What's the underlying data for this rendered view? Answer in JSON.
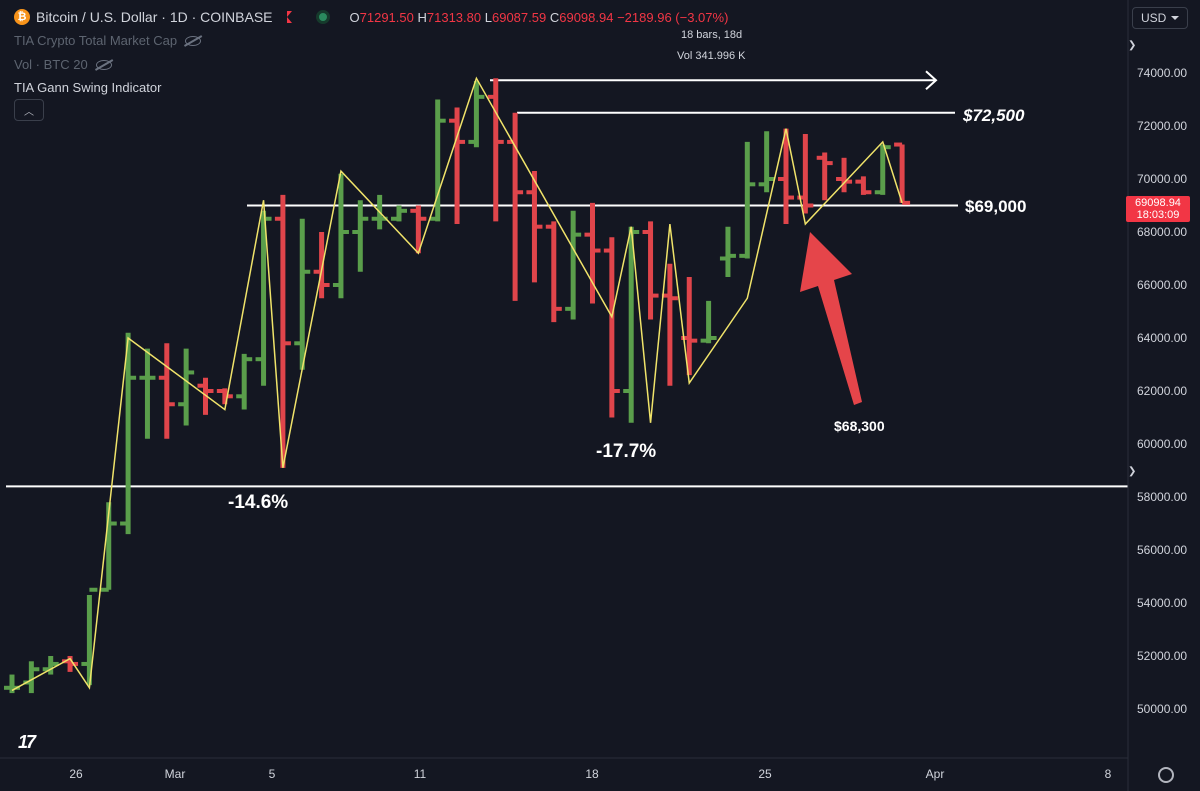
{
  "header": {
    "coin_glyph": "₿",
    "symbol_title": "Bitcoin / U.S. Dollar · 1D · COINBASE",
    "ohlc": {
      "o_label": "O",
      "o": "71291.50",
      "h_label": "H",
      "h": "71313.80",
      "l_label": "L",
      "l": "69087.59",
      "c_label": "C",
      "c": "69098.94",
      "change": "−2189.96 (−3.07%)"
    },
    "indicator1": "TIA Crypto Total Market Cap",
    "indicator2": "Vol · BTC 20",
    "indicator3": "TIA Gann Swing Indicator",
    "currency": "USD"
  },
  "measure": {
    "bars": "18 bars, 18d",
    "vol": "Vol 341.996 K"
  },
  "price_axis": {
    "labels": [
      "74000.00",
      "72000.00",
      "70000.00",
      "68000.00",
      "66000.00",
      "64000.00",
      "62000.00",
      "60000.00",
      "58000.00",
      "56000.00",
      "54000.00",
      "52000.00",
      "50000.00"
    ],
    "current_price": "69098.94",
    "countdown": "18:03:09"
  },
  "time_axis": {
    "labels": [
      "26",
      "Mar",
      "5",
      "11",
      "18",
      "25",
      "Apr",
      "8"
    ]
  },
  "annotations": {
    "drawdown1": "-14.6%",
    "drawdown2": "-17.7%",
    "low_point": "$68,300",
    "level_high": "$72,500",
    "level_mid": "$69,000"
  },
  "colors": {
    "background": "#141722",
    "up": "#5a9e4b",
    "down": "#e0454b",
    "swing": "#f0e36a",
    "lines": "#ffffff"
  },
  "chart_data": {
    "type": "candlestick-ohlc",
    "ylim": [
      49000,
      75000
    ],
    "series": [
      {
        "name": "BTCUSD",
        "bars": [
          {
            "o": 50800,
            "h": 51300,
            "l": 50600,
            "c": 50800
          },
          {
            "o": 51000,
            "h": 51800,
            "l": 50600,
            "c": 51500
          },
          {
            "o": 51500,
            "h": 52000,
            "l": 51300,
            "c": 51700
          },
          {
            "o": 51800,
            "h": 52000,
            "l": 51400,
            "c": 51700
          },
          {
            "o": 51700,
            "h": 54300,
            "l": 50900,
            "c": 54500
          },
          {
            "o": 54500,
            "h": 57800,
            "l": 54500,
            "c": 57000
          },
          {
            "o": 57000,
            "h": 64200,
            "l": 56600,
            "c": 62500
          },
          {
            "o": 62500,
            "h": 63600,
            "l": 60200,
            "c": 62500
          },
          {
            "o": 62500,
            "h": 63800,
            "l": 60200,
            "c": 61500
          },
          {
            "o": 61500,
            "h": 63600,
            "l": 60700,
            "c": 62700
          },
          {
            "o": 62200,
            "h": 62500,
            "l": 61100,
            "c": 62000
          },
          {
            "o": 62000,
            "h": 62100,
            "l": 61500,
            "c": 61800
          },
          {
            "o": 61800,
            "h": 63400,
            "l": 61300,
            "c": 63200
          },
          {
            "o": 63200,
            "h": 68800,
            "l": 62200,
            "c": 68500
          },
          {
            "o": 68500,
            "h": 69400,
            "l": 59100,
            "c": 63800
          },
          {
            "o": 63800,
            "h": 68500,
            "l": 62800,
            "c": 66500
          },
          {
            "o": 66500,
            "h": 68000,
            "l": 65500,
            "c": 66000
          },
          {
            "o": 66000,
            "h": 70200,
            "l": 65500,
            "c": 68000
          },
          {
            "o": 68000,
            "h": 69200,
            "l": 66500,
            "c": 68500
          },
          {
            "o": 68500,
            "h": 69400,
            "l": 68100,
            "c": 68500
          },
          {
            "o": 68500,
            "h": 69000,
            "l": 68400,
            "c": 68800
          },
          {
            "o": 68800,
            "h": 69000,
            "l": 67200,
            "c": 68500
          },
          {
            "o": 68500,
            "h": 73000,
            "l": 68400,
            "c": 72200
          },
          {
            "o": 72200,
            "h": 72700,
            "l": 68300,
            "c": 71400
          },
          {
            "o": 71400,
            "h": 73700,
            "l": 71200,
            "c": 73100
          },
          {
            "o": 73100,
            "h": 73800,
            "l": 68400,
            "c": 71400
          },
          {
            "o": 71400,
            "h": 72500,
            "l": 65400,
            "c": 69500
          },
          {
            "o": 69500,
            "h": 70300,
            "l": 66100,
            "c": 68200
          },
          {
            "o": 68200,
            "h": 68400,
            "l": 64600,
            "c": 65100
          },
          {
            "o": 65100,
            "h": 68800,
            "l": 64700,
            "c": 67900
          },
          {
            "o": 67900,
            "h": 69100,
            "l": 65300,
            "c": 67300
          },
          {
            "o": 67300,
            "h": 67800,
            "l": 61000,
            "c": 62000
          },
          {
            "o": 62000,
            "h": 68200,
            "l": 60800,
            "c": 68000
          },
          {
            "o": 68000,
            "h": 68400,
            "l": 64700,
            "c": 65600
          },
          {
            "o": 65600,
            "h": 66800,
            "l": 62200,
            "c": 65500
          },
          {
            "o": 64000,
            "h": 66300,
            "l": 62600,
            "c": 63900
          },
          {
            "o": 63900,
            "h": 65400,
            "l": 63800,
            "c": 64000
          },
          {
            "o": 67000,
            "h": 68200,
            "l": 66300,
            "c": 67100
          },
          {
            "o": 67100,
            "h": 71400,
            "l": 67000,
            "c": 69800
          },
          {
            "o": 69800,
            "h": 71800,
            "l": 69500,
            "c": 70000
          },
          {
            "o": 70000,
            "h": 71900,
            "l": 68300,
            "c": 69300
          },
          {
            "o": 69300,
            "h": 71700,
            "l": 68700,
            "c": 69000
          },
          {
            "o": 70800,
            "h": 71000,
            "l": 69200,
            "c": 70600
          },
          {
            "o": 70000,
            "h": 70800,
            "l": 69500,
            "c": 69900
          },
          {
            "o": 69900,
            "h": 70100,
            "l": 69400,
            "c": 69500
          },
          {
            "o": 69500,
            "h": 71300,
            "l": 69400,
            "c": 71200
          },
          {
            "o": 71300,
            "h": 71300,
            "l": 69100,
            "c": 69100
          }
        ]
      }
    ],
    "swing_points": [
      {
        "i": 0,
        "p": 50700
      },
      {
        "i": 3,
        "p": 51900
      },
      {
        "i": 4,
        "p": 50800
      },
      {
        "i": 6,
        "p": 64000
      },
      {
        "i": 11,
        "p": 61300
      },
      {
        "i": 13,
        "p": 69200
      },
      {
        "i": 14,
        "p": 59100
      },
      {
        "i": 17,
        "p": 70300
      },
      {
        "i": 21,
        "p": 67200
      },
      {
        "i": 24,
        "p": 73800
      },
      {
        "i": 31,
        "p": 64800
      },
      {
        "i": 32,
        "p": 68200
      },
      {
        "i": 33,
        "p": 60800
      },
      {
        "i": 34,
        "p": 68300
      },
      {
        "i": 35,
        "p": 62300
      },
      {
        "i": 38,
        "p": 65500
      },
      {
        "i": 40,
        "p": 71900
      },
      {
        "i": 41,
        "p": 68300
      },
      {
        "i": 45,
        "p": 71400
      },
      {
        "i": 46,
        "p": 69100
      }
    ],
    "horizontal_levels": [
      72500,
      69000,
      58400
    ],
    "peak_level": 73800
  }
}
